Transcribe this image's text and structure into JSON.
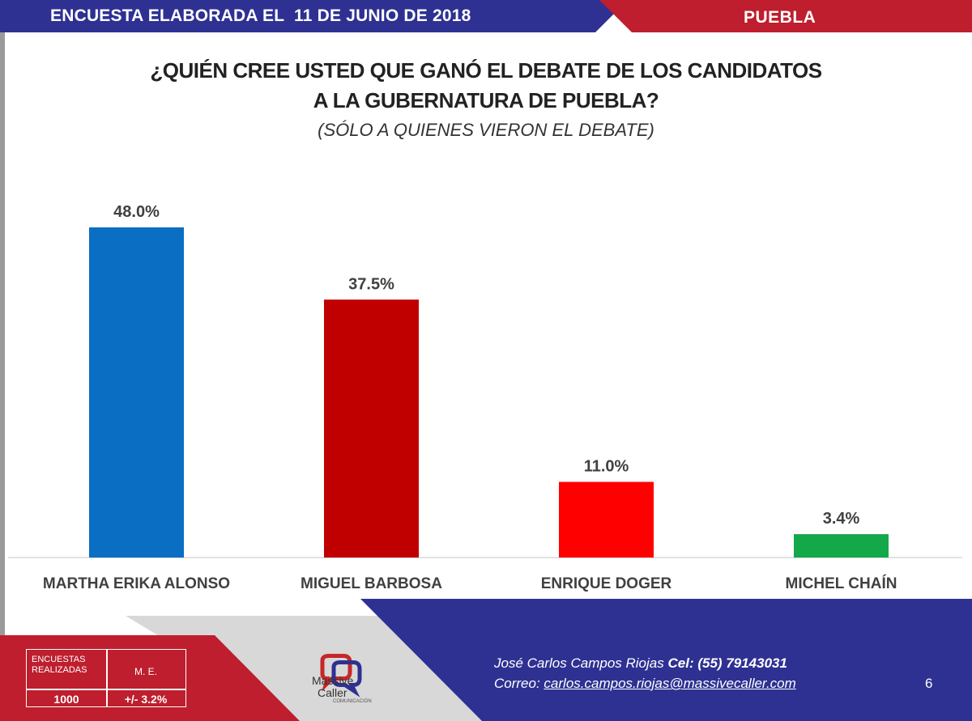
{
  "header": {
    "survey_label": "ENCUESTA ELABORADA EL  11 DE JUNIO DE 2018",
    "region": "PUEBLA"
  },
  "question": {
    "line1": "¿QUIÉN CREE USTED QUE GANÓ EL DEBATE DE LOS CANDIDATOS",
    "line2": "A LA GUBERNATURA DE PUEBLA?",
    "note": "(SÓLO A QUIENES VIERON EL DEBATE)"
  },
  "chart_data": {
    "type": "bar",
    "categories": [
      "MARTHA ERIKA ALONSO",
      "MIGUEL BARBOSA",
      "ENRIQUE DOGER",
      "MICHEL CHAÍN"
    ],
    "values": [
      48.0,
      37.5,
      11.0,
      3.4
    ],
    "data_labels": [
      "48.0%",
      "37.5%",
      "11.0%",
      "3.4%"
    ],
    "colors": [
      "#0a6ec2",
      "#c00000",
      "#ff0000",
      "#13a84a"
    ],
    "title": "¿QUIÉN CREE USTED QUE GANÓ EL DEBATE DE LOS CANDIDATOS A LA GUBERNATURA DE PUEBLA?",
    "subtitle": "(SÓLO A QUIENES VIERON EL DEBATE)",
    "xlabel": "",
    "ylabel": "",
    "ylim": [
      0,
      48
    ],
    "grid": false,
    "legend": "none"
  },
  "footer": {
    "stats": {
      "surveys_label": "ENCUESTAS REALIZADAS",
      "me_label": "M. E.",
      "surveys_value": "1000",
      "me_value": "+/- 3.2%"
    },
    "logo": {
      "line1": "Massive",
      "line2": "Caller",
      "line3": "COMUNICACIÓN"
    },
    "contact": {
      "name": "José Carlos Campos Riojas",
      "phone_label": "Cel:",
      "phone": "(55) 79143031",
      "email_label": "Correo:",
      "email": "carlos.campos.riojas@massivecaller.com"
    },
    "page_number": "6"
  },
  "theme": {
    "navy": "#2e3192",
    "red": "#be1e2d"
  }
}
